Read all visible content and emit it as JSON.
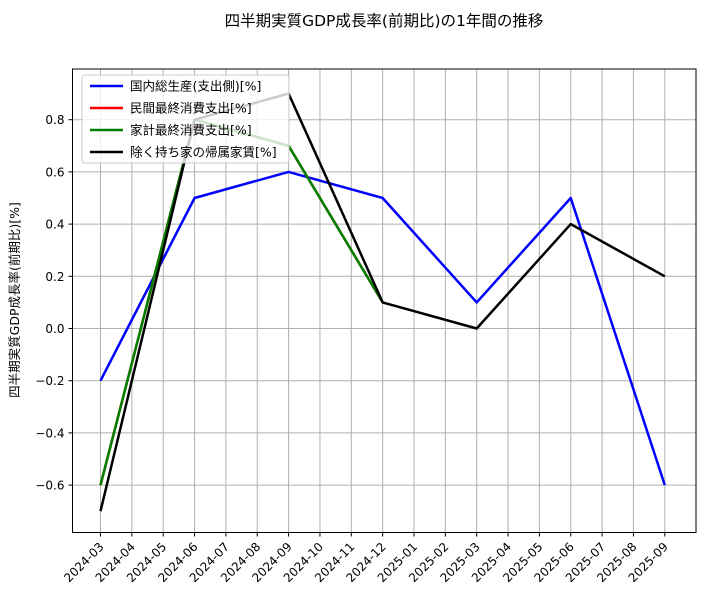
{
  "figure": {
    "background": "#ffffff"
  },
  "chart_data": {
    "type": "line",
    "title": "四半期実質GDP成長率(前期比)の1年間の推移",
    "xlabel": "",
    "ylabel": "四半期実質GDP成長率(前期比)[%]",
    "grid": true,
    "grid_color": "#b0b0b0",
    "spine_color": "#000000",
    "legend_position": "upper left",
    "legend_border_color": "#cccccc",
    "legend_background": "#ffffff",
    "legend_opacity": 0.8,
    "x_tick_labels": [
      "2024-03",
      "2024-04",
      "2024-05",
      "2024-06",
      "2024-07",
      "2024-08",
      "2024-09",
      "2024-10",
      "2024-11",
      "2024-12",
      "2025-01",
      "2025-02",
      "2025-03",
      "2025-04",
      "2025-05",
      "2025-06",
      "2025-07",
      "2025-08",
      "2025-09"
    ],
    "x_tick_rotation": 45,
    "y_ticks": [
      0.8,
      0.6,
      0.4,
      0.2,
      0.0,
      -0.2,
      -0.4,
      -0.6
    ],
    "y_tick_labels": [
      "0.8",
      "0.6",
      "0.4",
      "0.2",
      "0.0",
      "−0.2",
      "−0.4",
      "−0.6"
    ],
    "ylim": [
      -0.78,
      0.99
    ],
    "line_width": 2.5,
    "series": [
      {
        "name": "国内総生産(支出側)[%]",
        "color": "#0000ff",
        "x": [
          "2024-03",
          "2024-06",
          "2024-09",
          "2024-12",
          "2025-03",
          "2025-06",
          "2025-09"
        ],
        "values": [
          -0.2,
          0.5,
          0.6,
          0.5,
          0.1,
          0.5,
          -0.6
        ]
      },
      {
        "name": "民間最終消費支出[%]",
        "color": "#ff0000",
        "x": [
          "2024-03",
          "2024-06",
          "2024-09",
          "2024-12"
        ],
        "values": [
          -0.6,
          0.8,
          0.7,
          0.1
        ]
      },
      {
        "name": "家計最終消費支出[%]",
        "color": "#008000",
        "x": [
          "2024-03",
          "2024-06",
          "2024-09",
          "2024-12"
        ],
        "values": [
          -0.6,
          0.8,
          0.7,
          0.1
        ]
      },
      {
        "name": "除く持ち家の帰属家賃[%]",
        "color": "#000000",
        "x": [
          "2024-03",
          "2024-06",
          "2024-09",
          "2024-12",
          "2025-03",
          "2025-06",
          "2025-09"
        ],
        "values": [
          -0.7,
          0.8,
          0.9,
          0.1,
          0.0,
          0.4,
          0.2
        ]
      }
    ]
  }
}
